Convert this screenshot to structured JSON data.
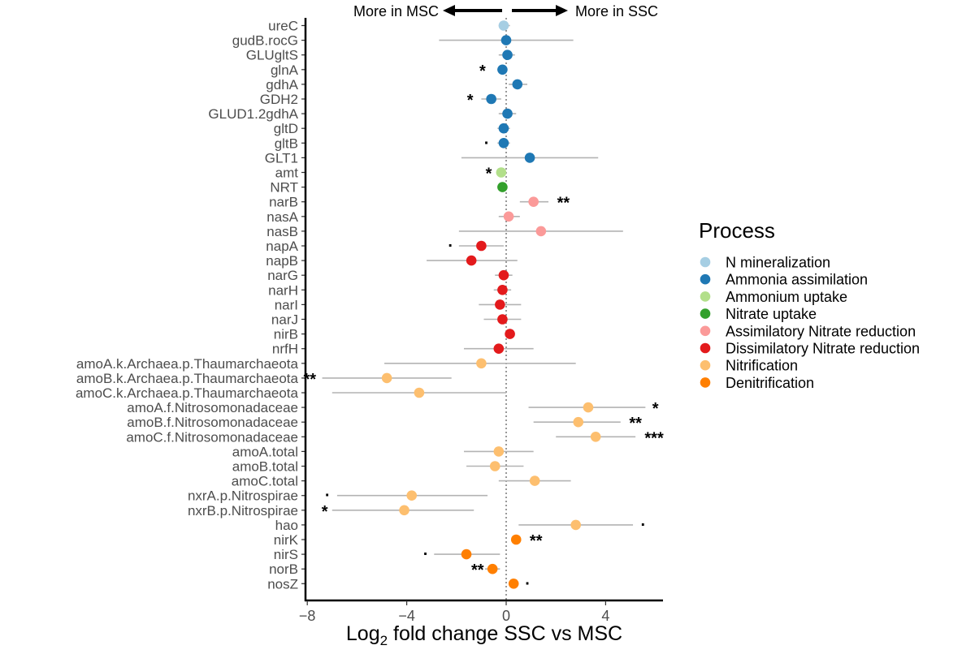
{
  "chart_data": {
    "type": "scatter",
    "title": "",
    "xlabel": {
      "main": "Log",
      "sub": "2",
      "rest": " fold change SSC vs MSC"
    },
    "xlim": [
      -8.1,
      6.2
    ],
    "xticks": [
      -8,
      -4,
      0,
      4
    ],
    "xtick_labels": [
      "−8",
      "−4",
      "0",
      "4"
    ],
    "direction_labels": {
      "left": "More in MSC",
      "right": "More in SSC"
    },
    "legend": {
      "title": "Process",
      "position": "right",
      "items": [
        {
          "label": "N mineralization",
          "color": "#a6cee3"
        },
        {
          "label": "Ammonia assimilation",
          "color": "#1f78b4"
        },
        {
          "label": "Ammonium uptake",
          "color": "#b2df8a"
        },
        {
          "label": "Nitrate uptake",
          "color": "#33a02c"
        },
        {
          "label": "Assimilatory Nitrate reduction",
          "color": "#fb9a99"
        },
        {
          "label": "Dissimilatory Nitrate reduction",
          "color": "#e31a1c"
        },
        {
          "label": "Nitrification",
          "color": "#fdbf6f"
        },
        {
          "label": "Denitrification",
          "color": "#ff7f00"
        }
      ]
    },
    "genes": [
      {
        "name": "ureC",
        "process": 0,
        "value": -0.1,
        "lo": -0.3,
        "hi": 0.15,
        "sig": "",
        "sig_x": null
      },
      {
        "name": "gudB.rocG",
        "process": 1,
        "value": 0.0,
        "lo": -2.7,
        "hi": 2.7,
        "sig": "",
        "sig_x": null
      },
      {
        "name": "GLUgltS",
        "process": 1,
        "value": 0.05,
        "lo": -0.3,
        "hi": 0.35,
        "sig": "",
        "sig_x": null
      },
      {
        "name": "glnA",
        "process": 1,
        "value": -0.15,
        "lo": -0.35,
        "hi": 0.05,
        "sig": "*",
        "sig_x": -0.95
      },
      {
        "name": "gdhA",
        "process": 1,
        "value": 0.45,
        "lo": 0.1,
        "hi": 0.85,
        "sig": "",
        "sig_x": null
      },
      {
        "name": "GDH2",
        "process": 1,
        "value": -0.6,
        "lo": -1.0,
        "hi": -0.2,
        "sig": "*",
        "sig_x": -1.45
      },
      {
        "name": "GLUD1.2gdhA",
        "process": 1,
        "value": 0.05,
        "lo": -0.3,
        "hi": 0.4,
        "sig": "",
        "sig_x": null
      },
      {
        "name": "gltD",
        "process": 1,
        "value": -0.1,
        "lo": -0.35,
        "hi": 0.15,
        "sig": "",
        "sig_x": null
      },
      {
        "name": "gltB",
        "process": 1,
        "value": -0.1,
        "lo": -0.35,
        "hi": 0.15,
        "sig": ".",
        "sig_x": -0.8
      },
      {
        "name": "GLT1",
        "process": 1,
        "value": 0.95,
        "lo": -1.8,
        "hi": 3.7,
        "sig": "",
        "sig_x": null
      },
      {
        "name": "amt",
        "process": 2,
        "value": -0.2,
        "lo": -0.4,
        "hi": 0.0,
        "sig": "*",
        "sig_x": -0.7
      },
      {
        "name": "NRT",
        "process": 3,
        "value": -0.15,
        "lo": -0.35,
        "hi": 0.05,
        "sig": "",
        "sig_x": null
      },
      {
        "name": "narB",
        "process": 4,
        "value": 1.1,
        "lo": 0.55,
        "hi": 1.7,
        "sig": "**",
        "sig_x": 2.3
      },
      {
        "name": "nasA",
        "process": 4,
        "value": 0.1,
        "lo": -0.3,
        "hi": 0.55,
        "sig": "",
        "sig_x": null
      },
      {
        "name": "nasB",
        "process": 4,
        "value": 1.4,
        "lo": -1.9,
        "hi": 4.7,
        "sig": "",
        "sig_x": null
      },
      {
        "name": "napA",
        "process": 5,
        "value": -1.0,
        "lo": -1.9,
        "hi": -0.1,
        "sig": ".",
        "sig_x": -2.25
      },
      {
        "name": "napB",
        "process": 5,
        "value": -1.4,
        "lo": -3.2,
        "hi": 0.45,
        "sig": "",
        "sig_x": null
      },
      {
        "name": "narG",
        "process": 5,
        "value": -0.1,
        "lo": -0.45,
        "hi": 0.25,
        "sig": "",
        "sig_x": null
      },
      {
        "name": "narH",
        "process": 5,
        "value": -0.15,
        "lo": -0.5,
        "hi": 0.2,
        "sig": "",
        "sig_x": null
      },
      {
        "name": "narI",
        "process": 5,
        "value": -0.25,
        "lo": -1.1,
        "hi": 0.6,
        "sig": "",
        "sig_x": null
      },
      {
        "name": "narJ",
        "process": 5,
        "value": -0.15,
        "lo": -0.9,
        "hi": 0.6,
        "sig": "",
        "sig_x": null
      },
      {
        "name": "nirB",
        "process": 5,
        "value": 0.15,
        "lo": 0.0,
        "hi": 0.3,
        "sig": "",
        "sig_x": null
      },
      {
        "name": "nrfH",
        "process": 5,
        "value": -0.3,
        "lo": -1.7,
        "hi": 1.1,
        "sig": "",
        "sig_x": null
      },
      {
        "name": "amoA.k.Archaea.p.Thaumarchaeota",
        "process": 6,
        "value": -1.0,
        "lo": -4.9,
        "hi": 2.8,
        "sig": "",
        "sig_x": null
      },
      {
        "name": "amoB.k.Archaea.p.Thaumarchaeota",
        "process": 6,
        "value": -4.8,
        "lo": -7.4,
        "hi": -2.2,
        "sig": "**",
        "sig_x": -7.9
      },
      {
        "name": "amoC.k.Archaea.p.Thaumarchaeota",
        "process": 6,
        "value": -3.5,
        "lo": -7.0,
        "hi": 0.0,
        "sig": "",
        "sig_x": null
      },
      {
        "name": "amoA.f.Nitrosomonadaceae",
        "process": 6,
        "value": 3.3,
        "lo": 0.9,
        "hi": 5.6,
        "sig": "*",
        "sig_x": 6.0
      },
      {
        "name": "amoB.f.Nitrosomonadaceae",
        "process": 6,
        "value": 2.9,
        "lo": 1.1,
        "hi": 4.6,
        "sig": "**",
        "sig_x": 5.2
      },
      {
        "name": "amoC.f.Nitrosomonadaceae",
        "process": 6,
        "value": 3.6,
        "lo": 2.0,
        "hi": 5.2,
        "sig": "***",
        "sig_x": 5.95
      },
      {
        "name": "amoA.total",
        "process": 6,
        "value": -0.3,
        "lo": -1.7,
        "hi": 1.1,
        "sig": "",
        "sig_x": null
      },
      {
        "name": "amoB.total",
        "process": 6,
        "value": -0.45,
        "lo": -1.6,
        "hi": 0.7,
        "sig": "",
        "sig_x": null
      },
      {
        "name": "amoC.total",
        "process": 6,
        "value": 1.15,
        "lo": -0.3,
        "hi": 2.6,
        "sig": "",
        "sig_x": null
      },
      {
        "name": "nxrA.p.Nitrospirae",
        "process": 6,
        "value": -3.8,
        "lo": -6.8,
        "hi": -0.75,
        "sig": ".",
        "sig_x": -7.2
      },
      {
        "name": "nxrB.p.Nitrospirae",
        "process": 6,
        "value": -4.1,
        "lo": -7.0,
        "hi": -1.3,
        "sig": "*",
        "sig_x": -7.3
      },
      {
        "name": "hao",
        "process": 6,
        "value": 2.8,
        "lo": 0.5,
        "hi": 5.1,
        "sig": ".",
        "sig_x": 5.5
      },
      {
        "name": "nirK",
        "process": 7,
        "value": 0.4,
        "lo": 0.25,
        "hi": 0.55,
        "sig": "**",
        "sig_x": 1.2
      },
      {
        "name": "nirS",
        "process": 7,
        "value": -1.6,
        "lo": -2.9,
        "hi": -0.25,
        "sig": ".",
        "sig_x": -3.25
      },
      {
        "name": "norB",
        "process": 7,
        "value": -0.55,
        "lo": -0.85,
        "hi": -0.25,
        "sig": "**",
        "sig_x": -1.15
      },
      {
        "name": "nosZ",
        "process": 7,
        "value": 0.3,
        "lo": 0.1,
        "hi": 0.5,
        "sig": ".",
        "sig_x": 0.85
      }
    ]
  }
}
